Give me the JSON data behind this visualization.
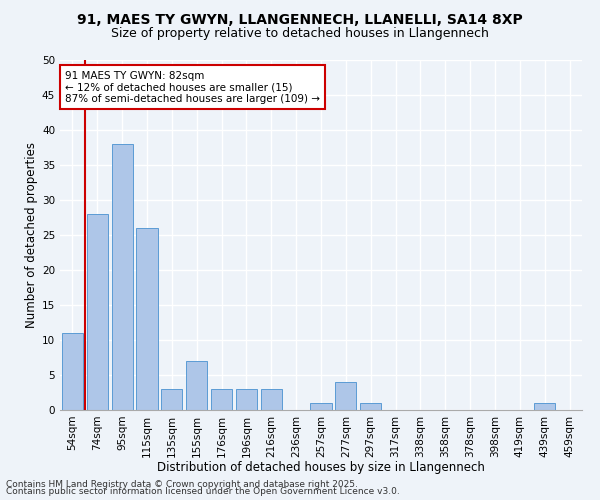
{
  "title1": "91, MAES TY GWYN, LLANGENNECH, LLANELLI, SA14 8XP",
  "title2": "Size of property relative to detached houses in Llangennech",
  "xlabel": "Distribution of detached houses by size in Llangennech",
  "ylabel": "Number of detached properties",
  "categories": [
    "54sqm",
    "74sqm",
    "95sqm",
    "115sqm",
    "135sqm",
    "155sqm",
    "176sqm",
    "196sqm",
    "216sqm",
    "236sqm",
    "257sqm",
    "277sqm",
    "297sqm",
    "317sqm",
    "338sqm",
    "358sqm",
    "378sqm",
    "398sqm",
    "419sqm",
    "439sqm",
    "459sqm"
  ],
  "values": [
    11,
    28,
    38,
    26,
    3,
    7,
    3,
    3,
    3,
    0,
    1,
    4,
    1,
    0,
    0,
    0,
    0,
    0,
    0,
    1,
    0
  ],
  "bar_color": "#aec6e8",
  "bar_edge_color": "#5b9bd5",
  "vline_x": 0.5,
  "subject_label": "91 MAES TY GWYN: 82sqm",
  "annotation_line1": "← 12% of detached houses are smaller (15)",
  "annotation_line2": "87% of semi-detached houses are larger (109) →",
  "annotation_box_color": "#ffffff",
  "annotation_box_edge_color": "#cc0000",
  "vline_color": "#cc0000",
  "ylim": [
    0,
    50
  ],
  "yticks": [
    0,
    5,
    10,
    15,
    20,
    25,
    30,
    35,
    40,
    45,
    50
  ],
  "footnote1": "Contains HM Land Registry data © Crown copyright and database right 2025.",
  "footnote2": "Contains public sector information licensed under the Open Government Licence v3.0.",
  "bg_color": "#eef3f9",
  "grid_color": "#ffffff",
  "title_fontsize": 10,
  "subtitle_fontsize": 9,
  "axis_label_fontsize": 8.5,
  "tick_fontsize": 7.5,
  "annotation_fontsize": 7.5,
  "footnote_fontsize": 6.5
}
